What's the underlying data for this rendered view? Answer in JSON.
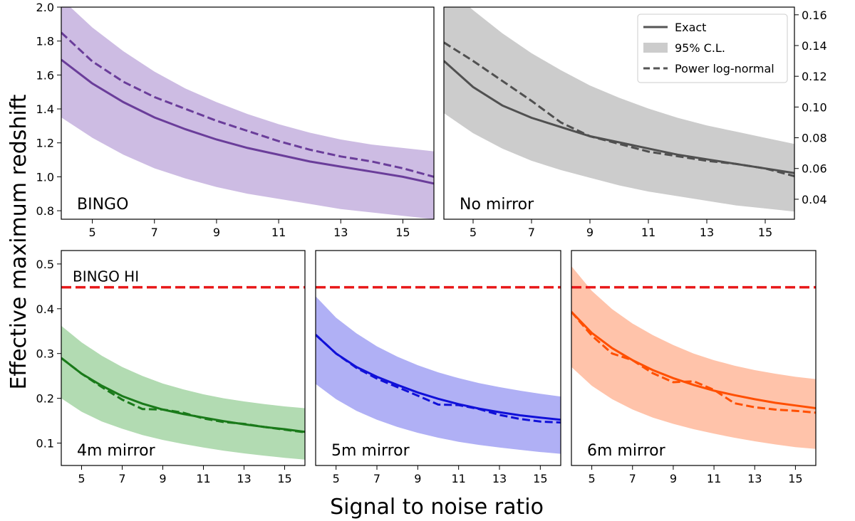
{
  "figure": {
    "ylabel": "Effective maximum redshift",
    "xlabel": "Signal to noise ratio"
  },
  "legend": {
    "items": [
      {
        "label": "Exact",
        "kind": "solid",
        "color": "#555555"
      },
      {
        "label": "95% C.L.",
        "kind": "patch",
        "color": "#cccccc"
      },
      {
        "label": "Power log-normal",
        "kind": "dashed",
        "color": "#555555"
      }
    ]
  },
  "chart_data": [
    {
      "type": "line",
      "title": "BINGO",
      "line_color": "#6a3d9a",
      "band_color": "#cdbce3",
      "xlim": [
        4,
        16
      ],
      "ylim": [
        0.75,
        2.0
      ],
      "xticks": [
        5,
        7,
        9,
        11,
        13,
        15
      ],
      "yticks": [
        0.8,
        1.0,
        1.2,
        1.4,
        1.6,
        1.8,
        2.0
      ],
      "ytick_labels": [
        "0.8",
        "1.0",
        "1.2",
        "1.4",
        "1.6",
        "1.8",
        "2.0"
      ],
      "x": [
        4,
        5,
        6,
        7,
        8,
        9,
        10,
        11,
        12,
        13,
        14,
        15,
        16
      ],
      "series": [
        {
          "name": "Exact",
          "values": [
            1.69,
            1.55,
            1.44,
            1.35,
            1.28,
            1.22,
            1.17,
            1.13,
            1.09,
            1.06,
            1.03,
            1.0,
            0.96
          ]
        },
        {
          "name": "Power log-normal",
          "values": [
            1.85,
            1.68,
            1.56,
            1.47,
            1.4,
            1.33,
            1.27,
            1.21,
            1.16,
            1.12,
            1.09,
            1.05,
            1.0
          ]
        },
        {
          "name": "95% C.L. upper",
          "values": [
            2.05,
            1.88,
            1.74,
            1.62,
            1.52,
            1.44,
            1.37,
            1.31,
            1.26,
            1.22,
            1.19,
            1.17,
            1.15
          ]
        },
        {
          "name": "95% C.L. lower",
          "values": [
            1.35,
            1.23,
            1.13,
            1.05,
            0.99,
            0.94,
            0.9,
            0.87,
            0.84,
            0.81,
            0.79,
            0.77,
            0.75
          ]
        }
      ]
    },
    {
      "type": "line",
      "title": "No mirror",
      "line_color": "#505050",
      "band_color": "#cccccc",
      "xlim": [
        4,
        16
      ],
      "ylim": [
        0.027,
        0.165
      ],
      "y_axis_side": "right",
      "xticks": [
        5,
        7,
        9,
        11,
        13,
        15
      ],
      "yticks": [
        0.04,
        0.06,
        0.08,
        0.1,
        0.12,
        0.14,
        0.16
      ],
      "ytick_labels": [
        "0.04",
        "0.06",
        "0.08",
        "0.10",
        "0.12",
        "0.14",
        "0.16"
      ],
      "x": [
        4,
        5,
        6,
        7,
        8,
        9,
        10,
        11,
        12,
        13,
        14,
        15,
        16
      ],
      "series": [
        {
          "name": "Exact",
          "values": [
            0.13,
            0.113,
            0.101,
            0.093,
            0.087,
            0.081,
            0.077,
            0.073,
            0.069,
            0.066,
            0.063,
            0.06,
            0.057
          ]
        },
        {
          "name": "Power log-normal",
          "values": [
            0.142,
            0.13,
            0.117,
            0.104,
            0.09,
            0.081,
            0.076,
            0.071,
            0.068,
            0.065,
            0.063,
            0.06,
            0.055
          ]
        },
        {
          "name": "95% C.L. upper",
          "values": [
            0.18,
            0.163,
            0.148,
            0.135,
            0.124,
            0.114,
            0.106,
            0.099,
            0.093,
            0.088,
            0.084,
            0.08,
            0.076
          ]
        },
        {
          "name": "95% C.L. lower",
          "values": [
            0.096,
            0.083,
            0.073,
            0.065,
            0.059,
            0.054,
            0.049,
            0.045,
            0.042,
            0.039,
            0.036,
            0.034,
            0.032
          ]
        }
      ]
    },
    {
      "type": "line",
      "title": "4m mirror",
      "line_color": "#1a7a1a",
      "band_color": "#b2dbb2",
      "xlim": [
        4,
        16
      ],
      "ylim": [
        0.05,
        0.53
      ],
      "xticks": [
        5,
        7,
        9,
        11,
        13,
        15
      ],
      "yticks": [
        0.1,
        0.2,
        0.3,
        0.4,
        0.5
      ],
      "ytick_labels": [
        "0.1",
        "0.2",
        "0.3",
        "0.4",
        "0.5"
      ],
      "reference": {
        "label": "BINGO HI",
        "y": 0.448,
        "color": "#e8191a"
      },
      "x": [
        4,
        5,
        6,
        7,
        8,
        9,
        10,
        11,
        12,
        13,
        14,
        15,
        16
      ],
      "series": [
        {
          "name": "Exact",
          "values": [
            0.29,
            0.255,
            0.228,
            0.205,
            0.188,
            0.175,
            0.165,
            0.157,
            0.149,
            0.142,
            0.136,
            0.131,
            0.125
          ]
        },
        {
          "name": "Power log-normal",
          "values": [
            0.29,
            0.255,
            0.225,
            0.197,
            0.176,
            0.175,
            0.168,
            0.155,
            0.147,
            0.143,
            0.136,
            0.13,
            0.124
          ]
        },
        {
          "name": "95% C.L. upper",
          "values": [
            0.362,
            0.325,
            0.295,
            0.27,
            0.25,
            0.233,
            0.22,
            0.209,
            0.2,
            0.193,
            0.187,
            0.182,
            0.178
          ]
        },
        {
          "name": "95% C.L. lower",
          "values": [
            0.2,
            0.17,
            0.148,
            0.132,
            0.118,
            0.107,
            0.098,
            0.09,
            0.083,
            0.077,
            0.072,
            0.067,
            0.063
          ]
        }
      ]
    },
    {
      "type": "line",
      "title": "5m mirror",
      "line_color": "#1010d8",
      "band_color": "#b0b0f5",
      "xlim": [
        4,
        16
      ],
      "ylim": [
        0.05,
        0.53
      ],
      "xticks": [
        5,
        7,
        9,
        11,
        13,
        15
      ],
      "reference": {
        "y": 0.448,
        "color": "#e8191a"
      },
      "x": [
        4,
        5,
        6,
        7,
        8,
        9,
        10,
        11,
        12,
        13,
        14,
        15,
        16
      ],
      "series": [
        {
          "name": "Exact",
          "values": [
            0.342,
            0.3,
            0.27,
            0.248,
            0.23,
            0.213,
            0.199,
            0.187,
            0.177,
            0.169,
            0.162,
            0.157,
            0.152
          ]
        },
        {
          "name": "Power log-normal",
          "values": [
            0.342,
            0.3,
            0.268,
            0.244,
            0.225,
            0.206,
            0.186,
            0.185,
            0.176,
            0.163,
            0.154,
            0.148,
            0.146
          ]
        },
        {
          "name": "95% C.L. upper",
          "values": [
            0.428,
            0.38,
            0.345,
            0.316,
            0.293,
            0.274,
            0.258,
            0.245,
            0.234,
            0.225,
            0.217,
            0.21,
            0.204
          ]
        },
        {
          "name": "95% C.L. lower",
          "values": [
            0.232,
            0.198,
            0.172,
            0.152,
            0.136,
            0.123,
            0.112,
            0.103,
            0.096,
            0.09,
            0.085,
            0.08,
            0.076
          ]
        }
      ]
    },
    {
      "type": "line",
      "title": "6m mirror",
      "line_color": "#ff4f00",
      "band_color": "#ffc3aa",
      "xlim": [
        4,
        16
      ],
      "ylim": [
        0.05,
        0.53
      ],
      "xticks": [
        5,
        7,
        9,
        11,
        13,
        15
      ],
      "reference": {
        "y": 0.448,
        "color": "#e8191a"
      },
      "x": [
        4,
        5,
        6,
        7,
        8,
        9,
        10,
        11,
        12,
        13,
        14,
        15,
        16
      ],
      "series": [
        {
          "name": "Exact",
          "values": [
            0.393,
            0.346,
            0.312,
            0.285,
            0.263,
            0.245,
            0.23,
            0.217,
            0.207,
            0.198,
            0.19,
            0.184,
            0.178
          ]
        },
        {
          "name": "Power log-normal",
          "values": [
            0.393,
            0.34,
            0.3,
            0.285,
            0.256,
            0.236,
            0.238,
            0.219,
            0.189,
            0.18,
            0.175,
            0.172,
            0.168
          ]
        },
        {
          "name": "95% C.L. upper",
          "values": [
            0.495,
            0.44,
            0.399,
            0.367,
            0.341,
            0.319,
            0.3,
            0.285,
            0.273,
            0.263,
            0.255,
            0.248,
            0.243
          ]
        },
        {
          "name": "95% C.L. lower",
          "values": [
            0.27,
            0.228,
            0.198,
            0.175,
            0.157,
            0.143,
            0.131,
            0.121,
            0.112,
            0.104,
            0.097,
            0.091,
            0.087
          ]
        }
      ]
    }
  ]
}
